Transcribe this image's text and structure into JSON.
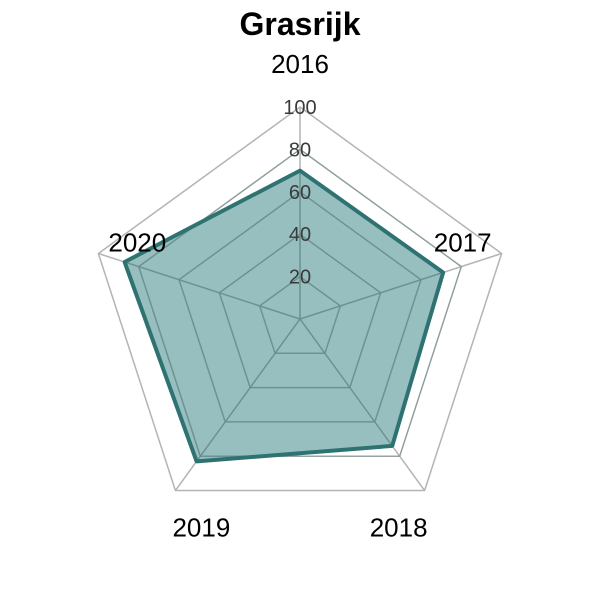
{
  "chart_data": {
    "type": "radar",
    "title": "Grasrijk",
    "categories": [
      "2016",
      "2017",
      "2018",
      "2019",
      "2020"
    ],
    "series": [
      {
        "values": [
          70,
          71,
          74,
          83,
          87
        ]
      }
    ],
    "ylim": [
      0,
      100
    ],
    "ticks": [
      "20",
      "40",
      "60",
      "80",
      "100"
    ],
    "grid": true,
    "legend": "none",
    "colors": {
      "fill": "#2f7f80",
      "fill_opacity": 0.5,
      "line": "#2e7372",
      "outer_grid": "#b4b4b4",
      "inner_grid": "#6a8b8b"
    }
  }
}
